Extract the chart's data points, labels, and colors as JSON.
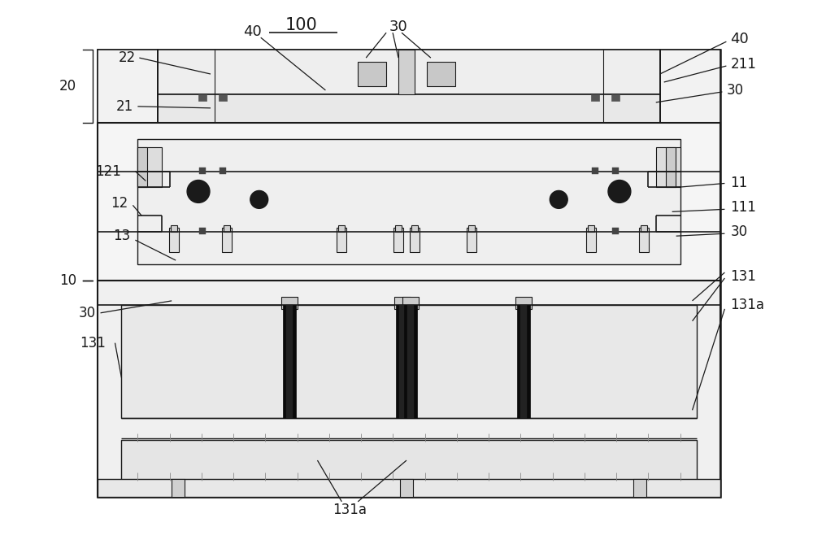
{
  "bg_color": "#ffffff",
  "lc": "#1a1a1a",
  "fig_width": 10.0,
  "fig_height": 6.8,
  "dpi": 100
}
